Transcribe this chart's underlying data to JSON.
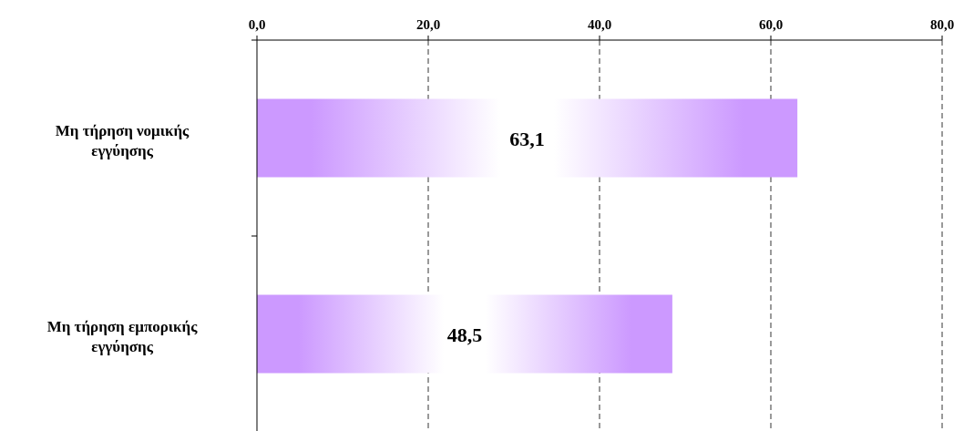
{
  "chart_data": {
    "type": "bar",
    "orientation": "horizontal",
    "categories": [
      "Μη τήρηση νομικής εγγύησης",
      "Μη τήρηση εμπορικής εγγύησης"
    ],
    "values": [
      63.1,
      48.5
    ],
    "value_labels": [
      "63,1",
      "48,5"
    ],
    "color": "#cc99ff",
    "xlim": [
      0,
      80
    ],
    "xticks": [
      {
        "value": 0,
        "label": "0,0"
      },
      {
        "value": 20,
        "label": "20,0"
      },
      {
        "value": 40,
        "label": "40,0"
      },
      {
        "value": 60,
        "label": "60,0"
      },
      {
        "value": 80,
        "label": "80,0"
      }
    ],
    "grid": "x",
    "line_style": "dashed"
  }
}
